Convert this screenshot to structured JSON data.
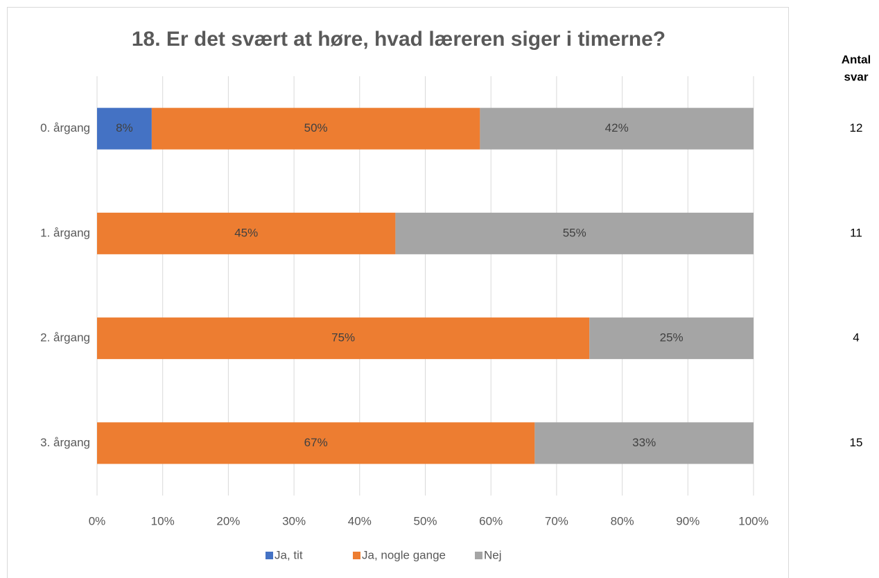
{
  "chart_data": {
    "type": "stacked_barh",
    "title": "18. Er det svært at høre, hvad læreren siger i timerne?",
    "categories": [
      "0. årgang",
      "1. årgang",
      "2. årgang",
      "3. årgang"
    ],
    "series": [
      {
        "name": "Ja, tit",
        "color": "#4472c4",
        "values": [
          8.33,
          null,
          null,
          null
        ],
        "value_labels": [
          "8%",
          null,
          null,
          null
        ]
      },
      {
        "name": "Ja, nogle gange",
        "color": "#ed7d31",
        "values": [
          50,
          45.45,
          75,
          66.67
        ],
        "value_labels": [
          "50%",
          "45%",
          "75%",
          "67%"
        ]
      },
      {
        "name": "Nej",
        "color": "#a5a5a5",
        "values": [
          41.67,
          54.55,
          25,
          33.33
        ],
        "value_labels": [
          "42%",
          "55%",
          "25%",
          "33%"
        ]
      }
    ],
    "xlim": [
      0,
      100
    ],
    "xticks": [
      {
        "value": 0,
        "label": "0%"
      },
      {
        "value": 10,
        "label": "10%"
      },
      {
        "value": 20,
        "label": "20%"
      },
      {
        "value": 30,
        "label": "30%"
      },
      {
        "value": 40,
        "label": "40%"
      },
      {
        "value": 50,
        "label": "50%"
      },
      {
        "value": 60,
        "label": "60%"
      },
      {
        "value": 70,
        "label": "70%"
      },
      {
        "value": 80,
        "label": "80%"
      },
      {
        "value": 90,
        "label": "90%"
      },
      {
        "value": 100,
        "label": "100%"
      }
    ],
    "grid": true,
    "legend": "bottom",
    "count_header": [
      "Antal",
      "svar"
    ],
    "counts": [
      12,
      11,
      4,
      15
    ]
  }
}
